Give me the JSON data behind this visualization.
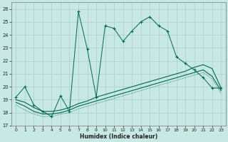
{
  "xlabel": "Humidex (Indice chaleur)",
  "bg_color": "#c8e8e4",
  "grid_color": "#aacfcc",
  "line_color": "#006655",
  "xlim": [
    -0.5,
    23.5
  ],
  "ylim": [
    17,
    26.5
  ],
  "xticks": [
    0,
    1,
    2,
    3,
    4,
    5,
    6,
    7,
    8,
    9,
    10,
    11,
    12,
    13,
    14,
    15,
    16,
    17,
    18,
    19,
    20,
    21,
    22,
    23
  ],
  "yticks": [
    17,
    18,
    19,
    20,
    21,
    22,
    23,
    24,
    25,
    26
  ],
  "line1_x": [
    0,
    1,
    2,
    3,
    4,
    5,
    6,
    7,
    8,
    9,
    10,
    11,
    12,
    13,
    14,
    15,
    16,
    17,
    18,
    19,
    20,
    21,
    22,
    23
  ],
  "line1_y": [
    19.2,
    20.0,
    18.6,
    18.1,
    17.7,
    19.3,
    18.1,
    25.8,
    22.9,
    19.2,
    24.7,
    24.5,
    23.5,
    24.3,
    25.0,
    25.4,
    24.7,
    24.3,
    22.3,
    21.8,
    21.3,
    20.7,
    19.9,
    19.9
  ],
  "line2_x": [
    0,
    1,
    2,
    3,
    4,
    5,
    6,
    7,
    8,
    9,
    10,
    11,
    12,
    13,
    14,
    15,
    16,
    17,
    18,
    19,
    20,
    21,
    22,
    23
  ],
  "line2_y": [
    19.0,
    18.8,
    18.4,
    18.1,
    18.1,
    18.2,
    18.4,
    18.7,
    18.9,
    19.2,
    19.4,
    19.6,
    19.8,
    20.0,
    20.2,
    20.4,
    20.6,
    20.8,
    21.0,
    21.2,
    21.5,
    21.7,
    21.4,
    19.9
  ],
  "line3_x": [
    0,
    1,
    2,
    3,
    4,
    5,
    6,
    7,
    8,
    9,
    10,
    11,
    12,
    13,
    14,
    15,
    16,
    17,
    18,
    19,
    20,
    21,
    22,
    23
  ],
  "line3_y": [
    18.8,
    18.5,
    18.1,
    17.9,
    17.9,
    18.0,
    18.2,
    18.5,
    18.7,
    18.9,
    19.1,
    19.3,
    19.5,
    19.7,
    19.9,
    20.1,
    20.3,
    20.5,
    20.7,
    20.9,
    21.1,
    21.3,
    20.8,
    19.7
  ],
  "line4_x": [
    0,
    1,
    2,
    3,
    4,
    5,
    6,
    7,
    8,
    9,
    10,
    11,
    12,
    13,
    14,
    15,
    16,
    17,
    18,
    19,
    20,
    21,
    22,
    23
  ],
  "line4_y": [
    18.6,
    18.2,
    17.9,
    17.7,
    17.7,
    17.9,
    18.0,
    18.3,
    18.5,
    18.7,
    18.9,
    19.1,
    19.3,
    19.5,
    19.7,
    19.9,
    20.1,
    20.3,
    20.5,
    20.7,
    20.9,
    21.1,
    20.6,
    19.5
  ]
}
